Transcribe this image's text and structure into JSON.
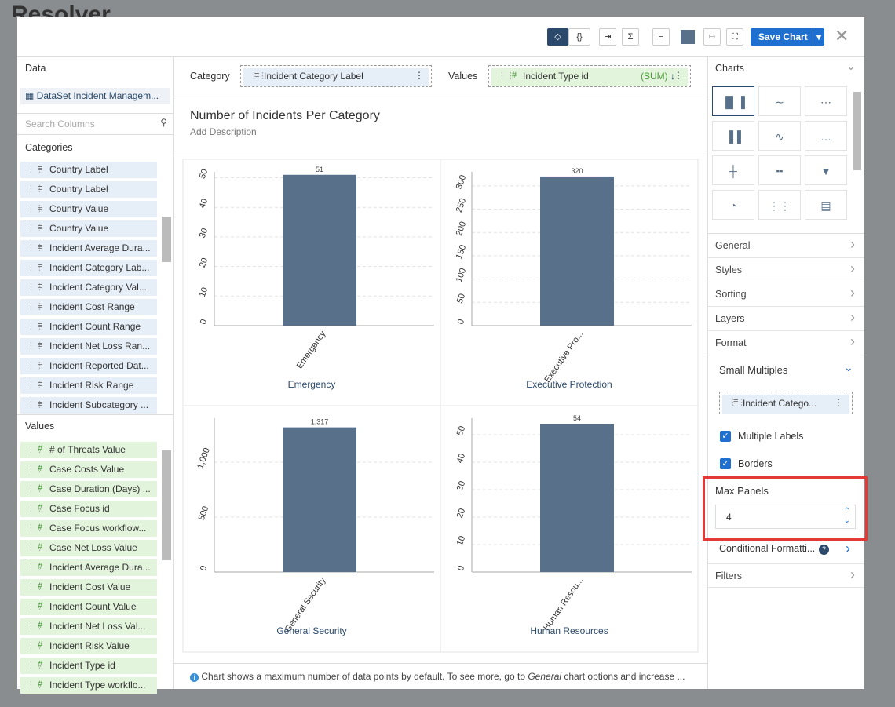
{
  "background": {
    "logo": "Resolver"
  },
  "toolbar": {
    "save_button": "Save Chart"
  },
  "data_panel": {
    "title": "Data",
    "dataset": "DataSet Incident Managem...",
    "search_placeholder": "Search Columns",
    "categories_title": "Categories",
    "categories": [
      "Country Label",
      "Country Label",
      "Country Value",
      "Country Value",
      "Incident Average Dura...",
      "Incident Category Lab...",
      "Incident Category Val...",
      "Incident Cost Range",
      "Incident Count Range",
      "Incident Net Loss Ran...",
      "Incident Reported Dat...",
      "Incident Risk Range",
      "Incident Subcategory ..."
    ],
    "values_title": "Values",
    "values": [
      "# of Threats Value",
      "Case Costs Value",
      "Case Duration (Days) ...",
      "Case Focus id",
      "Case Focus workflow...",
      "Case Net Loss Value",
      "Incident Average Dura...",
      "Incident Cost Value",
      "Incident Count Value",
      "Incident Net Loss Val...",
      "Incident Risk Value",
      "Incident Type id",
      "Incident Type workflo..."
    ]
  },
  "fields": {
    "category_label": "Category",
    "category_field": "Incident Category Label",
    "values_label": "Values",
    "values_field": "Incident Type id",
    "aggregate": "(SUM)"
  },
  "chart_header": {
    "title": "Number of Incidents Per Category",
    "description": "Add Description"
  },
  "chart_data": [
    {
      "type": "bar",
      "title": "Emergency",
      "categories": [
        "Emergency"
      ],
      "values": [
        51
      ],
      "color": "#587089",
      "ylim": [
        0,
        52
      ],
      "yticks": [
        0,
        10,
        20,
        30,
        40,
        50
      ],
      "grid": true
    },
    {
      "type": "bar",
      "title": "Executive Protection",
      "categories": [
        "Executive Pro..."
      ],
      "values": [
        320
      ],
      "color": "#587089",
      "ylim": [
        0,
        330
      ],
      "yticks": [
        0,
        50,
        100,
        150,
        200,
        250,
        300
      ],
      "grid": true
    },
    {
      "type": "bar",
      "title": "General Security",
      "categories": [
        "General Security"
      ],
      "values": [
        1317
      ],
      "value_labels": [
        "1,317"
      ],
      "color": "#587089",
      "ylim": [
        0,
        1400
      ],
      "yticks": [
        0,
        500,
        {
          "value": 1000,
          "label": "1,000"
        }
      ],
      "grid": true
    },
    {
      "type": "bar",
      "title": "Human Resources",
      "categories": [
        "Human Resou..."
      ],
      "values": [
        54
      ],
      "color": "#587089",
      "ylim": [
        0,
        56
      ],
      "yticks": [
        0,
        10,
        20,
        30,
        40,
        50
      ],
      "grid": true
    }
  ],
  "footer_note": {
    "before": "Chart shows a maximum number of data points by default. To see more, go to ",
    "emphasis": "General",
    "after": " chart options and increase ..."
  },
  "settings_panel": {
    "charts_title": "Charts",
    "sections": [
      "General",
      "Styles",
      "Sorting",
      "Layers",
      "Format"
    ],
    "small_multiples": "Small Multiples",
    "small_multiples_field": "Incident Catego...",
    "multiple_labels": "Multiple Labels",
    "borders": "Borders",
    "max_panels_label": "Max Panels",
    "max_panels_value": "4",
    "conditional_formatting": "Conditional Formatti...",
    "filters": "Filters"
  }
}
